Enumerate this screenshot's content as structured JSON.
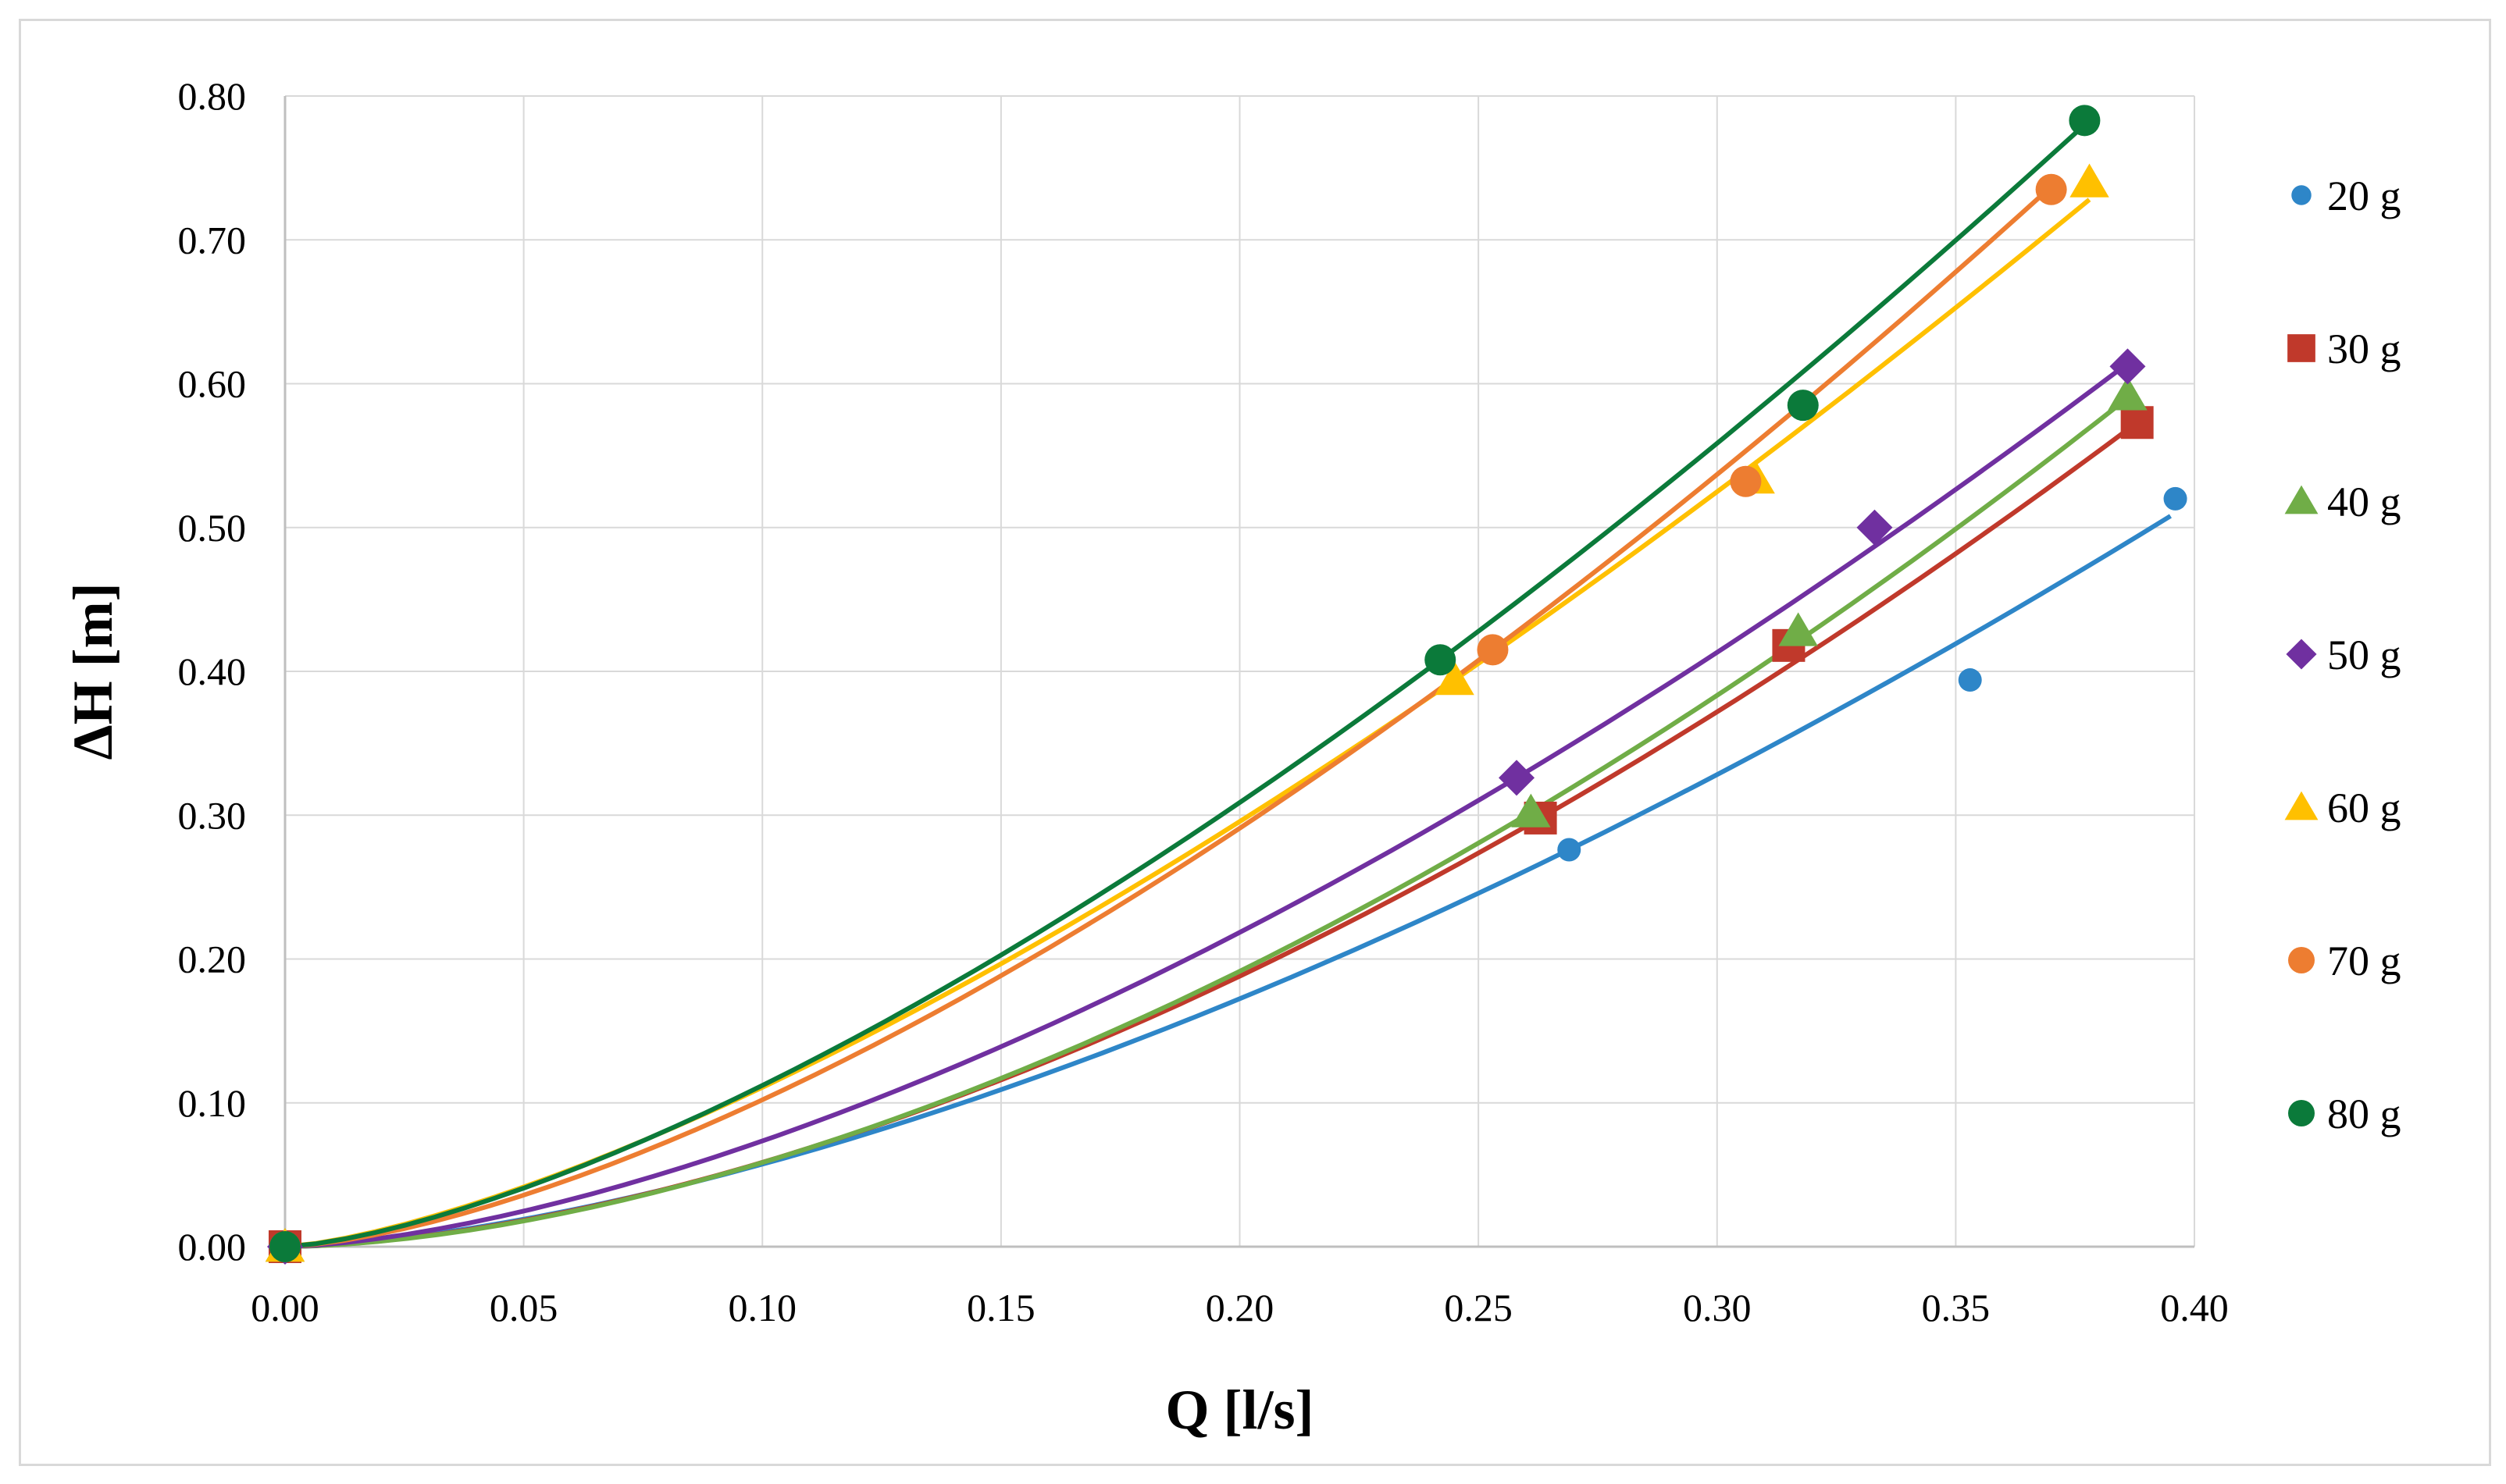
{
  "chart_data": {
    "type": "scatter",
    "title": "",
    "xlabel": "Q [l/s]",
    "ylabel": "ΔH [m]",
    "xlim": [
      0,
      0.4
    ],
    "ylim": [
      0,
      0.8
    ],
    "xticks": [
      "0.00",
      "0.05",
      "0.10",
      "0.15",
      "0.20",
      "0.25",
      "0.30",
      "0.35",
      "0.40"
    ],
    "yticks": [
      "0.00",
      "0.10",
      "0.20",
      "0.30",
      "0.40",
      "0.50",
      "0.60",
      "0.70",
      "0.80"
    ],
    "grid": true,
    "legend_position": "right",
    "trendlines": "power fit through each series",
    "series": [
      {
        "name": "20 g",
        "color": "#2e86c8",
        "marker": "circle-small",
        "x": [
          0.0,
          0.269,
          0.353,
          0.396
        ],
        "y": [
          0.0,
          0.276,
          0.394,
          0.52
        ],
        "fit_end": [
          0.395,
          0.508
        ]
      },
      {
        "name": "30 g",
        "color": "#c0392b",
        "marker": "square",
        "x": [
          0.0,
          0.263,
          0.315,
          0.388
        ],
        "y": [
          0.0,
          0.298,
          0.418,
          0.573
        ],
        "fit_end": [
          0.388,
          0.573
        ]
      },
      {
        "name": "40 g",
        "color": "#70ad47",
        "marker": "triangle",
        "x": [
          0.0,
          0.261,
          0.317,
          0.386
        ],
        "y": [
          0.0,
          0.302,
          0.428,
          0.592
        ],
        "fit_end": [
          0.386,
          0.59
        ]
      },
      {
        "name": "50 g",
        "color": "#7030a0",
        "marker": "diamond",
        "x": [
          0.0,
          0.258,
          0.333,
          0.386
        ],
        "y": [
          0.0,
          0.326,
          0.5,
          0.612
        ],
        "fit_end": [
          0.386,
          0.614
        ]
      },
      {
        "name": "60 g",
        "color": "#ffc000",
        "marker": "triangle",
        "x": [
          0.0,
          0.245,
          0.308,
          0.378
        ],
        "y": [
          0.0,
          0.394,
          0.534,
          0.74
        ],
        "fit_end": [
          0.378,
          0.728
        ]
      },
      {
        "name": "70 g",
        "color": "#ed7d31",
        "marker": "circle",
        "x": [
          0.0,
          0.253,
          0.306,
          0.37
        ],
        "y": [
          0.0,
          0.415,
          0.532,
          0.735
        ],
        "fit_end": [
          0.37,
          0.737
        ]
      },
      {
        "name": "80 g",
        "color": "#0b7a3a",
        "marker": "circle",
        "x": [
          0.0,
          0.242,
          0.318,
          0.377
        ],
        "y": [
          0.0,
          0.408,
          0.585,
          0.783
        ],
        "fit_end": [
          0.377,
          0.78
        ]
      }
    ]
  }
}
